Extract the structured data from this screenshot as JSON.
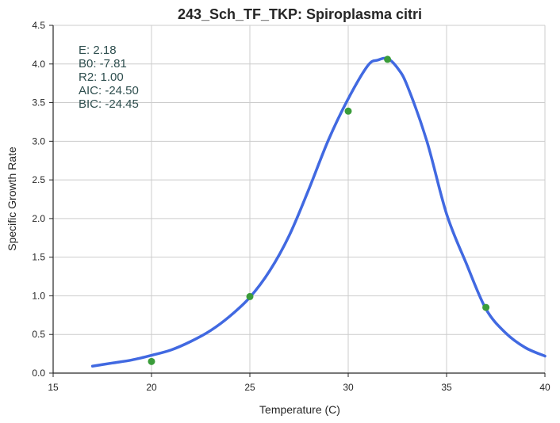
{
  "chart_data": {
    "type": "line",
    "title": "243_Sch_TF_TKP: Spiroplasma citri",
    "xlabel": "Temperature (C)",
    "ylabel": "Specific Growth Rate",
    "xlim": [
      15,
      40
    ],
    "ylim": [
      0,
      4.5
    ],
    "x_ticks": [
      "15",
      "20",
      "25",
      "30",
      "35",
      "40"
    ],
    "y_ticks": [
      "0.0",
      "0.5",
      "1.0",
      "1.5",
      "2.0",
      "2.5",
      "3.0",
      "3.5",
      "4.0",
      "4.5"
    ],
    "grid": true,
    "annotations": [
      "E:  2.18",
      "B0:  -7.81",
      "R2:  1.00",
      "AIC: -24.50",
      "BIC: -24.45"
    ],
    "series": [
      {
        "kind": "fit-line",
        "color": "#4169e1",
        "x": [
          17,
          18,
          19,
          20,
          21,
          22,
          23,
          24,
          25,
          26,
          27,
          28,
          29,
          30,
          31,
          31.5,
          32,
          32.5,
          33,
          34,
          35,
          36,
          37,
          38,
          39,
          40
        ],
        "y": [
          0.09,
          0.13,
          0.17,
          0.23,
          0.3,
          0.41,
          0.55,
          0.74,
          0.98,
          1.32,
          1.78,
          2.38,
          3.02,
          3.55,
          3.98,
          4.05,
          4.07,
          3.95,
          3.72,
          3.0,
          2.06,
          1.42,
          0.83,
          0.52,
          0.33,
          0.22
        ]
      },
      {
        "kind": "observed-points",
        "color": "#3a9c3a",
        "x": [
          20,
          25,
          30,
          32,
          37
        ],
        "y": [
          0.15,
          0.99,
          3.39,
          4.06,
          0.85
        ]
      }
    ]
  }
}
